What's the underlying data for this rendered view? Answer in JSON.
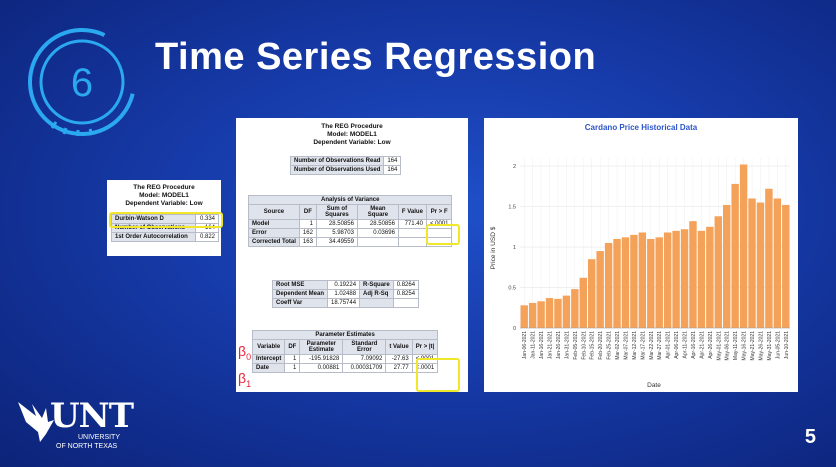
{
  "slide": {
    "title": "Time Series Regression",
    "number": "6",
    "page_number": "5",
    "logo": {
      "word": "UNT",
      "line1": "UNIVERSITY",
      "line2": "OF NORTH TEXAS"
    }
  },
  "dw_panel": {
    "header": [
      "The REG Procedure",
      "Model: MODEL1",
      "Dependent Variable: Low"
    ],
    "rows": [
      [
        "Durbin-Watson D",
        "0.334"
      ],
      [
        "Number of Observations",
        "164"
      ],
      [
        "1st Order Autocorrelation",
        "0.822"
      ]
    ]
  },
  "reg_panel": {
    "header": [
      "The REG Procedure",
      "Model: MODEL1",
      "Dependent Variable: Low"
    ],
    "obs": [
      [
        "Number of Observations Read",
        "164"
      ],
      [
        "Number of Observations Used",
        "164"
      ]
    ],
    "anova": {
      "title": "Analysis of Variance",
      "cols": [
        "Source",
        "DF",
        "Sum of Squares",
        "Mean Square",
        "F Value",
        "Pr > F"
      ],
      "rows": [
        [
          "Model",
          "1",
          "28.50856",
          "28.50856",
          "771.40",
          "<.0001"
        ],
        [
          "Error",
          "162",
          "5.98703",
          "0.03696",
          "",
          ""
        ],
        [
          "Corrected Total",
          "163",
          "34.49559",
          "",
          "",
          ""
        ]
      ]
    },
    "fit": [
      [
        "Root MSE",
        "0.19224",
        "R-Square",
        "0.8264"
      ],
      [
        "Dependent Mean",
        "1.02488",
        "Adj R-Sq",
        "0.8254"
      ],
      [
        "Coeff Var",
        "18.75744",
        "",
        ""
      ]
    ],
    "params": {
      "title": "Parameter Estimates",
      "cols": [
        "Variable",
        "DF",
        "Parameter Estimate",
        "Standard Error",
        "t Value",
        "Pr > |t|"
      ],
      "rows": [
        [
          "Intercept",
          "1",
          "-195.91828",
          "7.09092",
          "-27.63",
          "<.0001"
        ],
        [
          "Date",
          "1",
          "0.00881",
          "0.00031709",
          "27.77",
          "<.0001"
        ]
      ]
    },
    "beta0": "β",
    "beta0_sub": "0",
    "beta1": "β",
    "beta1_sub": "1"
  },
  "chart_data": {
    "type": "bar",
    "title": "Cardano Price Historical Data",
    "xlabel": "Date",
    "ylabel": "Price in USD $",
    "ylim": [
      0,
      2.1
    ],
    "yticks": [
      0,
      0.5,
      1,
      1.5,
      2
    ],
    "ytick_labels": [
      "0",
      "0.5",
      "1",
      "1.5",
      "2"
    ],
    "grid": true,
    "bar_color": "#f4a259",
    "categories": [
      "Jan-06-2021",
      "Jan-11-2021",
      "Jan-16-2021",
      "Jan-21-2021",
      "Jan-26-2021",
      "Jan-31-2021",
      "Feb-05-2021",
      "Feb-10-2021",
      "Feb-15-2021",
      "Feb-20-2021",
      "Feb-25-2021",
      "Mar-02-2021",
      "Mar-07-2021",
      "Mar-12-2021",
      "Mar-17-2021",
      "Mar-22-2021",
      "Mar-27-2021",
      "Apr-01-2021",
      "Apr-06-2021",
      "Apr-11-2021",
      "Apr-16-2021",
      "Apr-21-2021",
      "Apr-26-2021",
      "May-01-2021",
      "May-06-2021",
      "May-11-2021",
      "May-16-2021",
      "May-21-2021",
      "May-26-2021",
      "May-31-2021",
      "Jun-05-2021",
      "Jun-10-2021"
    ],
    "values": [
      0.28,
      0.31,
      0.33,
      0.37,
      0.36,
      0.4,
      0.48,
      0.62,
      0.85,
      0.95,
      1.05,
      1.1,
      1.12,
      1.15,
      1.18,
      1.1,
      1.12,
      1.18,
      1.2,
      1.22,
      1.32,
      1.2,
      1.25,
      1.38,
      1.52,
      1.78,
      2.02,
      1.6,
      1.55,
      1.72,
      1.6,
      1.52
    ]
  }
}
